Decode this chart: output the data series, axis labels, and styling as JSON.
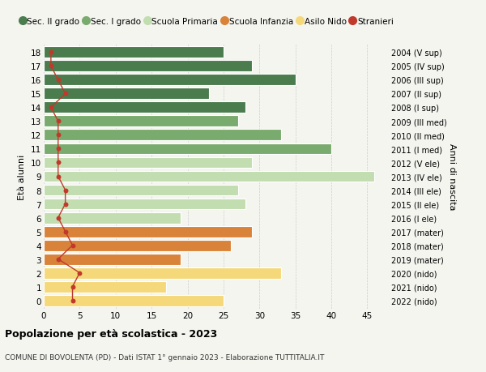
{
  "ages": [
    18,
    17,
    16,
    15,
    14,
    13,
    12,
    11,
    10,
    9,
    8,
    7,
    6,
    5,
    4,
    3,
    2,
    1,
    0
  ],
  "years": [
    "2004 (V sup)",
    "2005 (IV sup)",
    "2006 (III sup)",
    "2007 (II sup)",
    "2008 (I sup)",
    "2009 (III med)",
    "2010 (II med)",
    "2011 (I med)",
    "2012 (V ele)",
    "2013 (IV ele)",
    "2014 (III ele)",
    "2015 (II ele)",
    "2016 (I ele)",
    "2017 (mater)",
    "2018 (mater)",
    "2019 (mater)",
    "2020 (nido)",
    "2021 (nido)",
    "2022 (nido)"
  ],
  "bar_values": [
    25,
    29,
    35,
    23,
    28,
    27,
    33,
    40,
    29,
    46,
    27,
    28,
    19,
    29,
    26,
    19,
    33,
    17,
    25
  ],
  "bar_colors": [
    "#4a7c4e",
    "#4a7c4e",
    "#4a7c4e",
    "#4a7c4e",
    "#4a7c4e",
    "#7aab6e",
    "#7aab6e",
    "#7aab6e",
    "#c2ddb0",
    "#c2ddb0",
    "#c2ddb0",
    "#c2ddb0",
    "#c2ddb0",
    "#d9833a",
    "#d9833a",
    "#d9833a",
    "#f5d87a",
    "#f5d87a",
    "#f5d87a"
  ],
  "stranieri_values": [
    1,
    1,
    2,
    3,
    1,
    2,
    2,
    2,
    2,
    2,
    3,
    3,
    2,
    3,
    4,
    2,
    5,
    4,
    4
  ],
  "title": "Popolazione per età scolastica - 2023",
  "subtitle": "COMUNE DI BOVOLENTA (PD) - Dati ISTAT 1° gennaio 2023 - Elaborazione TUTTITALIA.IT",
  "xlabel_right": "Anni di nascita",
  "ylabel": "Età alunni",
  "xlim": [
    0,
    48
  ],
  "xticks": [
    0,
    5,
    10,
    15,
    20,
    25,
    30,
    35,
    40,
    45
  ],
  "legend_labels": [
    "Sec. II grado",
    "Sec. I grado",
    "Scuola Primaria",
    "Scuola Infanzia",
    "Asilo Nido",
    "Stranieri"
  ],
  "legend_colors": [
    "#4a7c4e",
    "#7aab6e",
    "#c2ddb0",
    "#d9833a",
    "#f5d87a",
    "#c0392b"
  ],
  "stranieri_color": "#c0392b",
  "bg_color": "#f5f5f0",
  "grid_color": "#cccccc"
}
